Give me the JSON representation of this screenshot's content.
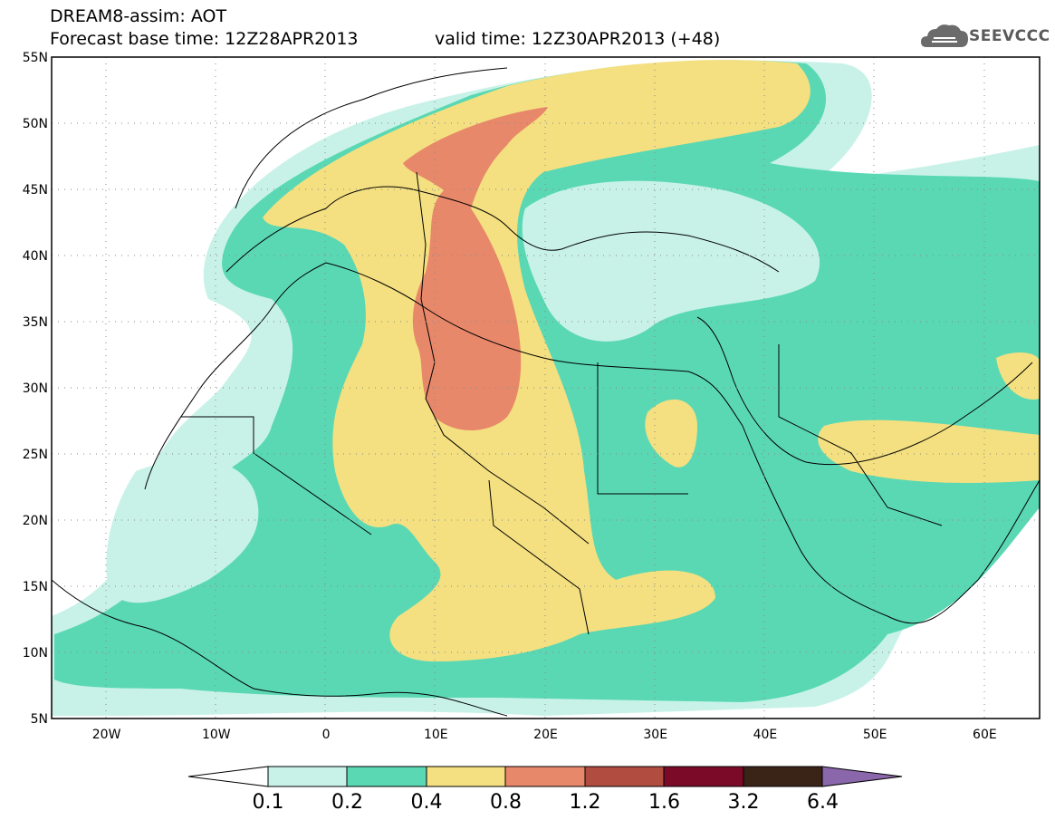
{
  "header": {
    "line1": "DREAM8-assim: AOT",
    "line2": "Forecast base time: 12Z28APR2013",
    "valid": "valid time: 12Z30APR2013 (+48)"
  },
  "logo": {
    "text": "SEEVCCC",
    "icon": "cloud-icon"
  },
  "map": {
    "lat_labels": [
      "55N",
      "50N",
      "45N",
      "40N",
      "35N",
      "30N",
      "25N",
      "20N",
      "15N",
      "10N",
      "5N"
    ],
    "lon_labels": [
      "20W",
      "10W",
      "0",
      "10E",
      "20E",
      "30E",
      "40E",
      "50E",
      "60E"
    ],
    "lat_range": [
      5,
      55
    ],
    "lon_range": [
      -25,
      65
    ],
    "grid": true
  },
  "colorbar": {
    "labels": [
      "0.1",
      "0.2",
      "0.4",
      "0.8",
      "1.2",
      "1.6",
      "3.2",
      "6.4"
    ],
    "colors": [
      "#ffffff",
      "#c8f2e8",
      "#5ad8b4",
      "#f4e080",
      "#e8886a",
      "#b04c40",
      "#7a0a28",
      "#3a2418",
      "#8a66aa"
    ]
  }
}
